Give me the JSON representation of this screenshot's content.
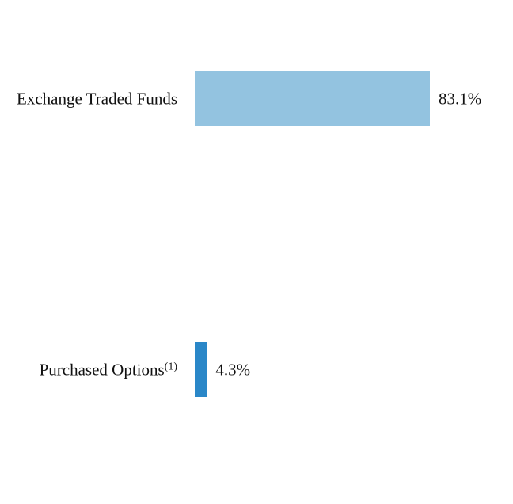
{
  "chart_data": {
    "type": "bar",
    "orientation": "horizontal",
    "categories": [
      {
        "label": "Exchange Traded Funds",
        "superscript": ""
      },
      {
        "label": "Purchased Options",
        "superscript": "(1)"
      }
    ],
    "values": [
      83.1,
      4.3
    ],
    "value_labels": [
      "83.1%",
      "4.3%"
    ],
    "colors": [
      "#93c3e0",
      "#2a87c8"
    ],
    "xlim": [
      0,
      100
    ],
    "grid": false
  }
}
